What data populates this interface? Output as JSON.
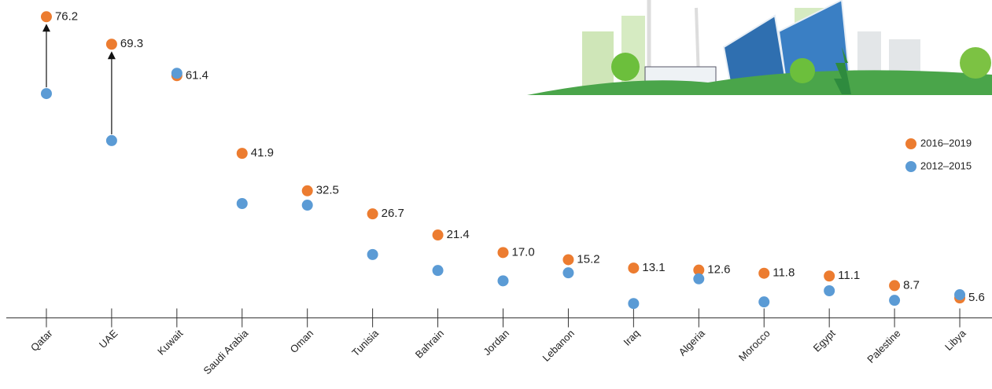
{
  "chart_data": {
    "type": "dot",
    "categories": [
      "Qatar",
      "UAE",
      "Kuwait",
      "Saudi Arabia",
      "Oman",
      "Tunisia",
      "Bahrain",
      "Jordan",
      "Lebanon",
      "Iraq",
      "Algeria",
      "Morocco",
      "Egypt",
      "Palestine",
      "Libya"
    ],
    "series": [
      {
        "name": "2016–2019",
        "color": "#ec7c30",
        "values": [
          76.2,
          69.3,
          61.4,
          41.9,
          32.5,
          26.7,
          21.4,
          17.0,
          15.2,
          13.1,
          12.6,
          11.8,
          11.1,
          8.7,
          5.6
        ],
        "value_labels": [
          "76.2",
          "69.3",
          "61.4",
          "41.9",
          "32.5",
          "26.7",
          "21.4",
          "17.0",
          "15.2",
          "13.1",
          "12.6",
          "11.8",
          "11.1",
          "8.7",
          "5.6"
        ]
      },
      {
        "name": "2012–2015",
        "color": "#5b9bd5",
        "values": [
          56.9,
          45.1,
          62.0,
          29.3,
          28.9,
          16.5,
          12.5,
          9.9,
          11.9,
          4.2,
          10.4,
          4.6,
          7.4,
          5.0,
          6.4
        ]
      }
    ],
    "ylim": [
      0,
      80.4
    ]
  }
}
